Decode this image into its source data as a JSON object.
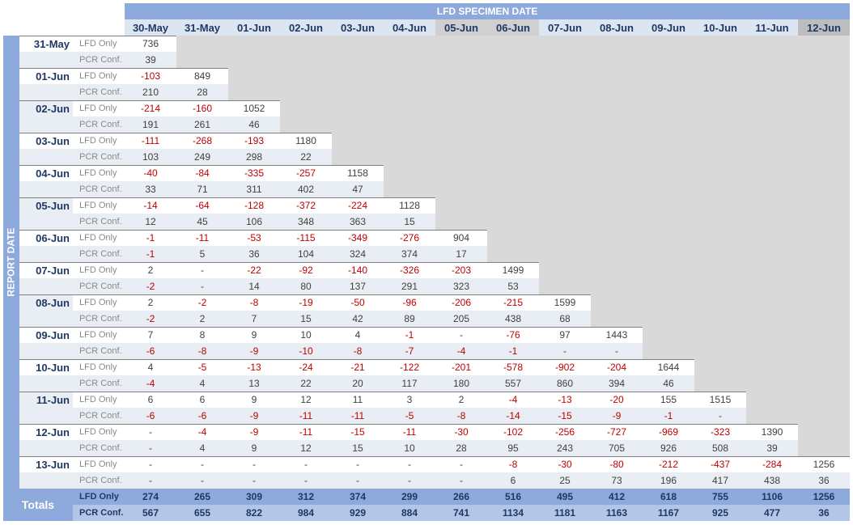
{
  "chart_data": {
    "type": "table",
    "title": "LFD SPECIMEN DATE",
    "row_axis_label": "REPORT DATE",
    "columns": [
      "30-May",
      "31-May",
      "01-Jun",
      "02-Jun",
      "03-Jun",
      "04-Jun",
      "05-Jun",
      "06-Jun",
      "07-Jun",
      "08-Jun",
      "09-Jun",
      "10-Jun",
      "11-Jun",
      "12-Jun"
    ],
    "grey_columns": [
      "05-Jun",
      "06-Jun"
    ],
    "dark_columns": [
      "12-Jun"
    ],
    "row_types": [
      "LFD Only",
      "PCR Conf."
    ],
    "rows": [
      {
        "date": "31-May",
        "lfd": [
          "736"
        ],
        "pcr": [
          "39"
        ]
      },
      {
        "date": "01-Jun",
        "lfd": [
          "-103",
          "849"
        ],
        "pcr": [
          "210",
          "28"
        ]
      },
      {
        "date": "02-Jun",
        "lfd": [
          "-214",
          "-160",
          "1052"
        ],
        "pcr": [
          "191",
          "261",
          "46"
        ]
      },
      {
        "date": "03-Jun",
        "lfd": [
          "-111",
          "-268",
          "-193",
          "1180"
        ],
        "pcr": [
          "103",
          "249",
          "298",
          "22"
        ]
      },
      {
        "date": "04-Jun",
        "lfd": [
          "-40",
          "-84",
          "-335",
          "-257",
          "1158"
        ],
        "pcr": [
          "33",
          "71",
          "311",
          "402",
          "47"
        ]
      },
      {
        "date": "05-Jun",
        "lfd": [
          "-14",
          "-64",
          "-128",
          "-372",
          "-224",
          "1128"
        ],
        "pcr": [
          "12",
          "45",
          "106",
          "348",
          "363",
          "15"
        ]
      },
      {
        "date": "06-Jun",
        "lfd": [
          "-1",
          "-11",
          "-53",
          "-115",
          "-349",
          "-276",
          "904"
        ],
        "pcr": [
          "-1",
          "5",
          "36",
          "104",
          "324",
          "374",
          "17"
        ]
      },
      {
        "date": "07-Jun",
        "lfd": [
          "2",
          "-",
          "-22",
          "-92",
          "-140",
          "-326",
          "-203",
          "1499"
        ],
        "pcr": [
          "-2",
          "-",
          "14",
          "80",
          "137",
          "291",
          "323",
          "53"
        ]
      },
      {
        "date": "08-Jun",
        "lfd": [
          "2",
          "-2",
          "-8",
          "-19",
          "-50",
          "-96",
          "-206",
          "-215",
          "1599"
        ],
        "pcr": [
          "-2",
          "2",
          "7",
          "15",
          "42",
          "89",
          "205",
          "438",
          "68"
        ]
      },
      {
        "date": "09-Jun",
        "lfd": [
          "7",
          "8",
          "9",
          "10",
          "4",
          "-1",
          "-",
          "-76",
          "97",
          "1443"
        ],
        "pcr": [
          "-6",
          "-8",
          "-9",
          "-10",
          "-8",
          "-7",
          "-4",
          "-1",
          "-",
          "-"
        ]
      },
      {
        "date": "10-Jun",
        "lfd": [
          "4",
          "-5",
          "-13",
          "-24",
          "-21",
          "-122",
          "-201",
          "-578",
          "-902",
          "-204",
          "1644"
        ],
        "pcr": [
          "-4",
          "4",
          "13",
          "22",
          "20",
          "117",
          "180",
          "557",
          "860",
          "394",
          "46"
        ]
      },
      {
        "date": "11-Jun",
        "lfd": [
          "6",
          "6",
          "9",
          "12",
          "11",
          "3",
          "2",
          "-4",
          "-13",
          "-20",
          "155",
          "1515"
        ],
        "pcr": [
          "-6",
          "-6",
          "-9",
          "-11",
          "-11",
          "-5",
          "-8",
          "-14",
          "-15",
          "-9",
          "-1",
          "-"
        ]
      },
      {
        "date": "12-Jun",
        "lfd": [
          "-",
          "-4",
          "-9",
          "-11",
          "-15",
          "-11",
          "-30",
          "-102",
          "-256",
          "-727",
          "-969",
          "-323",
          "1390"
        ],
        "pcr": [
          "-",
          "4",
          "9",
          "12",
          "15",
          "10",
          "28",
          "95",
          "243",
          "705",
          "926",
          "508",
          "39"
        ]
      },
      {
        "date": "13-Jun",
        "lfd": [
          "-",
          "-",
          "-",
          "-",
          "-",
          "-",
          "-",
          "-8",
          "-30",
          "-80",
          "-212",
          "-437",
          "-284",
          "1256"
        ],
        "pcr": [
          "-",
          "-",
          "-",
          "-",
          "-",
          "-",
          "-",
          "6",
          "25",
          "73",
          "196",
          "417",
          "438",
          "36"
        ]
      }
    ],
    "totals": {
      "label": "Totals",
      "lfd": [
        "274",
        "265",
        "309",
        "312",
        "374",
        "299",
        "266",
        "516",
        "495",
        "412",
        "618",
        "755",
        "1106",
        "1256"
      ],
      "pcr": [
        "567",
        "655",
        "822",
        "984",
        "929",
        "884",
        "741",
        "1134",
        "1181",
        "1163",
        "1167",
        "925",
        "477",
        "36"
      ]
    },
    "colors": {
      "header": "#8ea9db",
      "negative": "#c00000",
      "empty": "#d9d9d9",
      "stripe": "#e9edf4"
    }
  }
}
